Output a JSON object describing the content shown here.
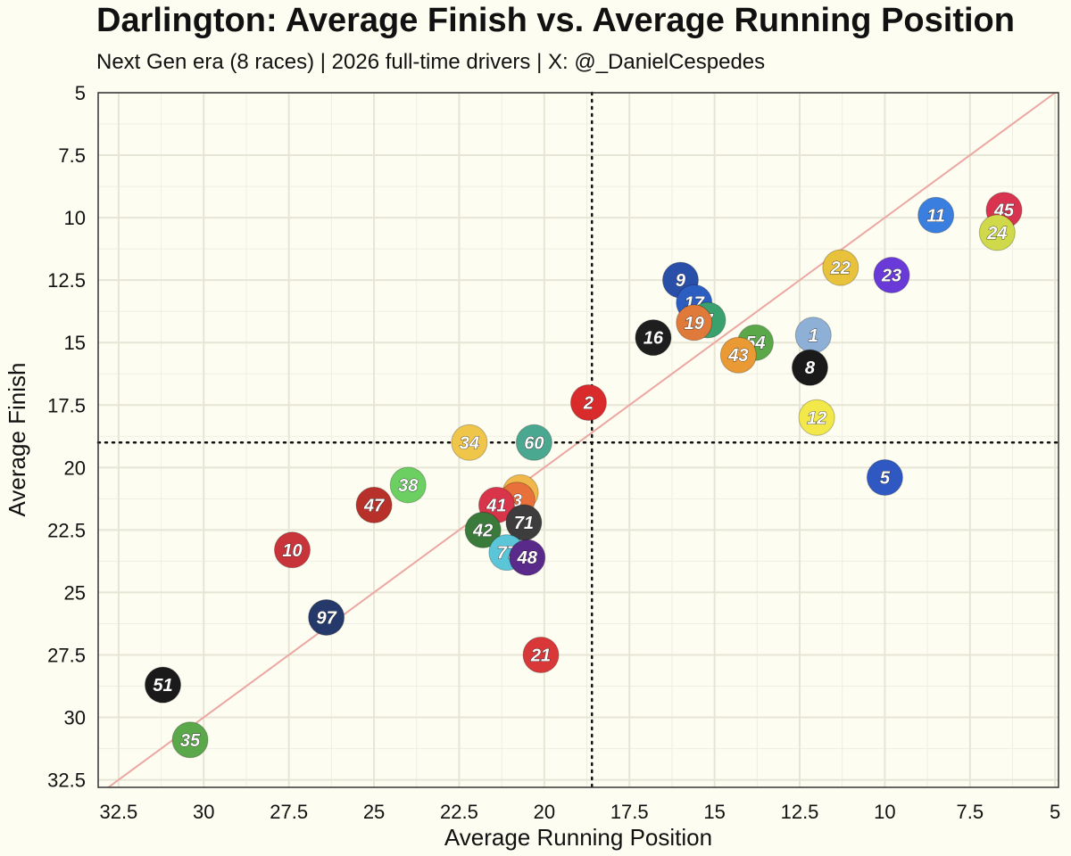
{
  "chart_data": {
    "type": "scatter",
    "title": "Darlington: Average Finish vs. Average Running Position",
    "subtitle": "Next Gen era (8 races) | 2026 full-time drivers | X: @_DanielCespedes",
    "xlabel": "Average Running Position",
    "ylabel": "Average Finish",
    "xlim": [
      33.1,
      4.9
    ],
    "ylim": [
      5.0,
      32.8
    ],
    "x_reversed": true,
    "y_reversed": true,
    "xticks": [
      "32.5",
      "30",
      "27.5",
      "25",
      "22.5",
      "20",
      "17.5",
      "15",
      "12.5",
      "10",
      "7.5",
      "5"
    ],
    "yticks": [
      "5",
      "7.5",
      "10",
      "12.5",
      "15",
      "17.5",
      "20",
      "22.5",
      "25",
      "27.5",
      "30",
      "32.5"
    ],
    "reference_line": "y = x",
    "median_lines": {
      "x": 18.6,
      "y": 19.0
    },
    "grid": true,
    "points": [
      {
        "car": "45",
        "x": 6.5,
        "y": 9.7,
        "color": "#d8344f"
      },
      {
        "car": "11",
        "x": 8.5,
        "y": 9.9,
        "color": "#3a7fe0"
      },
      {
        "car": "24",
        "x": 6.7,
        "y": 10.6,
        "color": "#cfd94a"
      },
      {
        "car": "22",
        "x": 11.3,
        "y": 12.0,
        "color": "#e8c23a"
      },
      {
        "car": "23",
        "x": 9.8,
        "y": 12.3,
        "color": "#6a3ad8"
      },
      {
        "car": "9",
        "x": 16.0,
        "y": 12.5,
        "color": "#2a4fa8"
      },
      {
        "car": "17",
        "x": 15.6,
        "y": 13.4,
        "color": "#2c5ec2"
      },
      {
        "car": "7",
        "x": 15.2,
        "y": 14.1,
        "color": "#3aa06e"
      },
      {
        "car": "19",
        "x": 15.6,
        "y": 14.2,
        "color": "#e07a3a"
      },
      {
        "car": "16",
        "x": 16.8,
        "y": 14.8,
        "color": "#1e1e1e"
      },
      {
        "car": "1",
        "x": 12.1,
        "y": 14.7,
        "color": "#8eafd6"
      },
      {
        "car": "54",
        "x": 13.8,
        "y": 15.0,
        "color": "#5aa84a"
      },
      {
        "car": "43",
        "x": 14.3,
        "y": 15.5,
        "color": "#e99a35"
      },
      {
        "car": "8",
        "x": 12.2,
        "y": 16.0,
        "color": "#1a1a1a"
      },
      {
        "car": "2",
        "x": 18.7,
        "y": 17.4,
        "color": "#d92b2b"
      },
      {
        "car": "12",
        "x": 12.0,
        "y": 18.0,
        "color": "#f2e84a"
      },
      {
        "car": "34",
        "x": 22.2,
        "y": 19.0,
        "color": "#f0c64a"
      },
      {
        "car": "60",
        "x": 20.3,
        "y": 19.0,
        "color": "#4aa890"
      },
      {
        "car": "5",
        "x": 10.0,
        "y": 20.4,
        "color": "#2f58c2"
      },
      {
        "car": "38",
        "x": 24.0,
        "y": 20.7,
        "color": "#6ccf62"
      },
      {
        "car": "4",
        "x": 20.7,
        "y": 21.0,
        "color": "#f0b84a"
      },
      {
        "car": "3",
        "x": 20.8,
        "y": 21.3,
        "color": "#e8703a"
      },
      {
        "car": "47",
        "x": 25.0,
        "y": 21.5,
        "color": "#b8302a"
      },
      {
        "car": "41",
        "x": 21.4,
        "y": 21.5,
        "color": "#d8344a"
      },
      {
        "car": "71",
        "x": 20.6,
        "y": 22.2,
        "color": "#3d3d3d"
      },
      {
        "car": "42",
        "x": 21.8,
        "y": 22.5,
        "color": "#3a7a3a"
      },
      {
        "car": "10",
        "x": 27.4,
        "y": 23.3,
        "color": "#c9343a"
      },
      {
        "car": "77",
        "x": 21.1,
        "y": 23.4,
        "color": "#5bc6d8"
      },
      {
        "car": "48",
        "x": 20.5,
        "y": 23.6,
        "color": "#5a2a8a"
      },
      {
        "car": "97",
        "x": 26.4,
        "y": 26.0,
        "color": "#253a6a"
      },
      {
        "car": "21",
        "x": 20.1,
        "y": 27.5,
        "color": "#d83838"
      },
      {
        "car": "51",
        "x": 31.2,
        "y": 28.7,
        "color": "#1a1a1a"
      },
      {
        "car": "35",
        "x": 30.4,
        "y": 30.9,
        "color": "#5aa84a"
      }
    ]
  }
}
